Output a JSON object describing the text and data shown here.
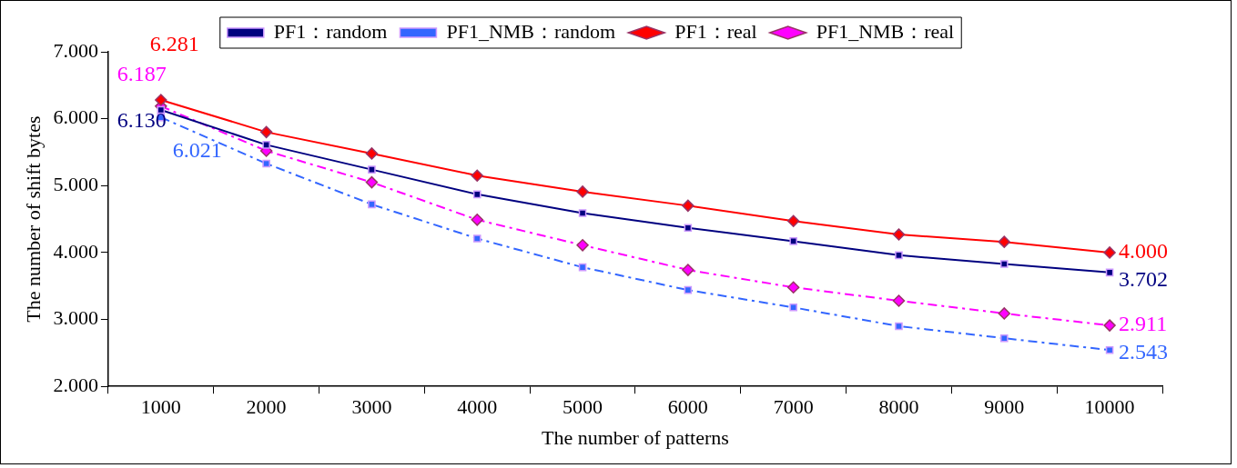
{
  "chart_data": {
    "type": "line",
    "xlabel": "The number of patterns",
    "ylabel": "The number of shift bytes",
    "categories": [
      "1000",
      "2000",
      "3000",
      "4000",
      "5000",
      "6000",
      "7000",
      "8000",
      "9000",
      "10000"
    ],
    "ylim": [
      2,
      7
    ],
    "yticks": [
      {
        "value": 2,
        "label": "2.000"
      },
      {
        "value": 3,
        "label": "3.000"
      },
      {
        "value": 4,
        "label": "4.000"
      },
      {
        "value": 5,
        "label": "5.000"
      },
      {
        "value": 6,
        "label": "6.000"
      },
      {
        "value": 7,
        "label": "7.000"
      }
    ],
    "grid": false,
    "legend": "top",
    "series": [
      {
        "name": "PF1：random",
        "color": "#000080",
        "marker": "square",
        "line_style": "solid",
        "values": [
          6.13,
          5.61,
          5.24,
          4.87,
          4.59,
          4.37,
          4.17,
          3.96,
          3.83,
          3.702
        ],
        "value_labels": [
          "6.130",
          null,
          null,
          null,
          null,
          null,
          null,
          null,
          null,
          "3.702"
        ]
      },
      {
        "name": "PF1_NMB：random",
        "color": "#3366ff",
        "marker": "square",
        "line_style": "dashed",
        "values": [
          6.021,
          5.33,
          4.72,
          4.21,
          3.78,
          3.44,
          3.18,
          2.9,
          2.72,
          2.543
        ],
        "value_labels": [
          "6.021",
          null,
          null,
          null,
          null,
          null,
          null,
          null,
          null,
          "2.543"
        ]
      },
      {
        "name": "PF1：real",
        "color": "#ff0000",
        "marker": "diamond",
        "line_style": "solid",
        "values": [
          6.281,
          5.8,
          5.48,
          5.15,
          4.91,
          4.7,
          4.47,
          4.27,
          4.16,
          4.0
        ],
        "value_labels": [
          "6.281",
          null,
          null,
          null,
          null,
          null,
          null,
          null,
          null,
          "4.000"
        ]
      },
      {
        "name": "PF1_NMB：real",
        "color": "#ff00ff",
        "marker": "diamond",
        "line_style": "dashed",
        "values": [
          6.187,
          5.52,
          5.05,
          4.49,
          4.11,
          3.74,
          3.48,
          3.28,
          3.09,
          2.911
        ],
        "value_labels": [
          "6.187",
          null,
          null,
          null,
          null,
          null,
          null,
          null,
          null,
          "2.911"
        ]
      }
    ]
  }
}
